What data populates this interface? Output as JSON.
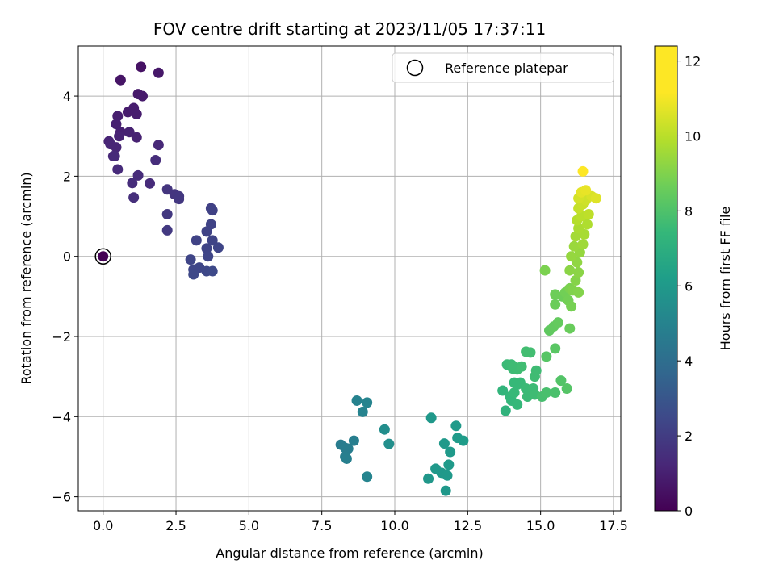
{
  "chart_data": {
    "type": "scatter",
    "title": "FOV centre drift starting at 2023/11/05 17:37:11",
    "xlabel": "Angular distance from reference (arcmin)",
    "ylabel": "Rotation from reference (arcmin)",
    "xlim": [
      -0.85,
      17.75
    ],
    "ylim": [
      -6.35,
      5.25
    ],
    "x_ticks": [
      0.0,
      2.5,
      5.0,
      7.5,
      10.0,
      12.5,
      15.0,
      17.5
    ],
    "x_tick_labels": [
      "0.0",
      "2.5",
      "5.0",
      "7.5",
      "10.0",
      "12.5",
      "15.0",
      "17.5"
    ],
    "y_ticks": [
      -6,
      -4,
      -2,
      0,
      2,
      4
    ],
    "y_tick_labels": [
      "−6",
      "−4",
      "−2",
      "0",
      "2",
      "4"
    ],
    "grid": true,
    "colormap": "viridis",
    "colorbar": {
      "label": "Hours from first FF file",
      "range": [
        0,
        12.4
      ],
      "ticks": [
        0,
        2,
        4,
        6,
        8,
        10,
        12
      ],
      "tick_labels": [
        "0",
        "2",
        "4",
        "6",
        "8",
        "10",
        "12"
      ]
    },
    "legend": {
      "position": "top-right",
      "entries": [
        {
          "label": "Reference platepar",
          "marker": "open-circle"
        }
      ]
    },
    "reference_point": {
      "x": 0,
      "y": 0
    },
    "points": [
      [
        0.0,
        0.0,
        0.0
      ],
      [
        1.3,
        4.73,
        0.6
      ],
      [
        0.6,
        4.4,
        0.7
      ],
      [
        1.9,
        4.58,
        0.8
      ],
      [
        1.2,
        4.05,
        0.85
      ],
      [
        1.35,
        4.0,
        0.9
      ],
      [
        0.85,
        3.6,
        0.95
      ],
      [
        1.05,
        3.7,
        1.0
      ],
      [
        0.5,
        3.5,
        1.05
      ],
      [
        1.15,
        3.55,
        1.0
      ],
      [
        0.45,
        3.3,
        1.1
      ],
      [
        0.6,
        3.1,
        1.1
      ],
      [
        0.9,
        3.1,
        1.15
      ],
      [
        0.55,
        3.0,
        1.2
      ],
      [
        1.15,
        2.97,
        1.15
      ],
      [
        0.2,
        2.87,
        1.25
      ],
      [
        0.25,
        2.8,
        1.3
      ],
      [
        0.45,
        2.72,
        1.3
      ],
      [
        1.9,
        2.78,
        1.4
      ],
      [
        0.35,
        2.5,
        1.4
      ],
      [
        0.4,
        2.5,
        1.45
      ],
      [
        0.5,
        2.17,
        1.5
      ],
      [
        1.2,
        2.02,
        1.55
      ],
      [
        1.6,
        1.82,
        1.55
      ],
      [
        1.0,
        1.83,
        1.6
      ],
      [
        1.05,
        1.47,
        1.65
      ],
      [
        1.8,
        2.4,
        1.6
      ],
      [
        2.2,
        1.67,
        1.9
      ],
      [
        2.45,
        1.55,
        1.95
      ],
      [
        2.6,
        1.5,
        2.0
      ],
      [
        2.6,
        1.43,
        2.0
      ],
      [
        2.2,
        1.05,
        2.05
      ],
      [
        2.2,
        0.65,
        2.1
      ],
      [
        3.7,
        1.2,
        2.4
      ],
      [
        3.75,
        1.15,
        2.45
      ],
      [
        3.7,
        0.8,
        2.5
      ],
      [
        3.55,
        0.62,
        2.5
      ],
      [
        3.2,
        0.4,
        2.5
      ],
      [
        3.75,
        0.4,
        2.55
      ],
      [
        3.95,
        0.22,
        2.6
      ],
      [
        3.55,
        0.2,
        2.55
      ],
      [
        3.6,
        0.0,
        2.6
      ],
      [
        3.0,
        -0.08,
        2.6
      ],
      [
        3.3,
        -0.28,
        2.65
      ],
      [
        3.1,
        -0.33,
        2.65
      ],
      [
        3.1,
        -0.45,
        2.7
      ],
      [
        3.55,
        -0.37,
        2.7
      ],
      [
        3.75,
        -0.37,
        2.75
      ],
      [
        8.7,
        -3.6,
        5.5
      ],
      [
        9.05,
        -3.65,
        5.6
      ],
      [
        8.9,
        -3.88,
        5.55
      ],
      [
        8.6,
        -4.6,
        5.3
      ],
      [
        8.15,
        -4.7,
        5.2
      ],
      [
        8.4,
        -4.8,
        5.25
      ],
      [
        8.3,
        -4.78,
        5.25
      ],
      [
        8.3,
        -5.0,
        5.3
      ],
      [
        8.35,
        -5.05,
        5.35
      ],
      [
        9.05,
        -5.5,
        5.6
      ],
      [
        9.65,
        -4.32,
        6.1
      ],
      [
        9.8,
        -4.68,
        6.15
      ],
      [
        11.25,
        -4.03,
        6.6
      ],
      [
        12.1,
        -4.23,
        6.7
      ],
      [
        12.15,
        -4.53,
        6.75
      ],
      [
        12.35,
        -4.6,
        6.8
      ],
      [
        11.7,
        -4.67,
        6.65
      ],
      [
        11.9,
        -4.88,
        6.7
      ],
      [
        11.4,
        -5.3,
        6.6
      ],
      [
        11.6,
        -5.4,
        6.6
      ],
      [
        11.85,
        -5.2,
        6.7
      ],
      [
        11.8,
        -5.47,
        6.65
      ],
      [
        11.15,
        -5.55,
        6.55
      ],
      [
        11.75,
        -5.85,
        6.6
      ],
      [
        13.8,
        -3.85,
        8.0
      ],
      [
        13.7,
        -3.35,
        8.1
      ],
      [
        13.95,
        -3.5,
        8.2
      ],
      [
        14.0,
        -3.6,
        8.2
      ],
      [
        14.2,
        -3.7,
        8.25
      ],
      [
        14.1,
        -3.4,
        8.3
      ],
      [
        14.2,
        -3.2,
        8.3
      ],
      [
        14.3,
        -3.15,
        8.35
      ],
      [
        14.1,
        -3.15,
        8.3
      ],
      [
        14.5,
        -3.3,
        8.4
      ],
      [
        14.55,
        -3.5,
        8.4
      ],
      [
        14.75,
        -3.3,
        8.45
      ],
      [
        14.8,
        -3.45,
        8.5
      ],
      [
        14.8,
        -3.0,
        8.5
      ],
      [
        14.85,
        -2.85,
        8.5
      ],
      [
        13.85,
        -2.7,
        8.4
      ],
      [
        14.0,
        -2.7,
        8.45
      ],
      [
        14.05,
        -2.8,
        8.45
      ],
      [
        14.1,
        -2.75,
        8.5
      ],
      [
        14.2,
        -2.82,
        8.5
      ],
      [
        14.35,
        -2.75,
        8.55
      ],
      [
        14.5,
        -2.38,
        8.6
      ],
      [
        14.65,
        -2.4,
        8.6
      ],
      [
        15.05,
        -3.5,
        8.7
      ],
      [
        15.2,
        -3.4,
        8.75
      ],
      [
        15.5,
        -3.4,
        8.8
      ],
      [
        15.7,
        -3.1,
        9.0
      ],
      [
        15.9,
        -3.3,
        9.05
      ],
      [
        15.2,
        -2.5,
        9.1
      ],
      [
        15.5,
        -2.3,
        9.15
      ],
      [
        15.3,
        -1.85,
        9.3
      ],
      [
        15.45,
        -1.75,
        9.35
      ],
      [
        15.6,
        -1.65,
        9.4
      ],
      [
        16.0,
        -1.8,
        9.5
      ],
      [
        15.5,
        -1.2,
        9.55
      ],
      [
        15.75,
        -1.0,
        9.6
      ],
      [
        15.5,
        -0.95,
        9.6
      ],
      [
        15.85,
        -0.9,
        9.7
      ],
      [
        15.95,
        -1.1,
        9.75
      ],
      [
        16.05,
        -1.25,
        9.8
      ],
      [
        15.15,
        -0.35,
        9.9
      ],
      [
        16.0,
        -0.8,
        9.9
      ],
      [
        16.1,
        -0.85,
        10.0
      ],
      [
        16.3,
        -0.9,
        10.05
      ],
      [
        16.2,
        -0.6,
        10.1
      ],
      [
        16.3,
        -0.4,
        10.2
      ],
      [
        16.0,
        -0.35,
        10.2
      ],
      [
        16.25,
        -0.15,
        10.3
      ],
      [
        16.05,
        0.0,
        10.4
      ],
      [
        16.35,
        0.1,
        10.4
      ],
      [
        16.15,
        0.25,
        10.5
      ],
      [
        16.45,
        0.3,
        10.6
      ],
      [
        16.2,
        0.5,
        10.7
      ],
      [
        16.5,
        0.55,
        10.75
      ],
      [
        16.3,
        0.7,
        10.8
      ],
      [
        16.6,
        0.8,
        10.9
      ],
      [
        16.25,
        0.9,
        11.0
      ],
      [
        16.4,
        1.0,
        11.1
      ],
      [
        16.65,
        1.05,
        11.2
      ],
      [
        16.3,
        1.2,
        11.3
      ],
      [
        16.45,
        1.3,
        11.4
      ],
      [
        16.55,
        1.4,
        11.5
      ],
      [
        16.3,
        1.45,
        11.6
      ],
      [
        16.75,
        1.5,
        11.7
      ],
      [
        16.9,
        1.45,
        11.8
      ],
      [
        16.4,
        1.6,
        11.9
      ],
      [
        16.55,
        1.65,
        12.0
      ],
      [
        16.45,
        2.12,
        12.4
      ]
    ]
  }
}
